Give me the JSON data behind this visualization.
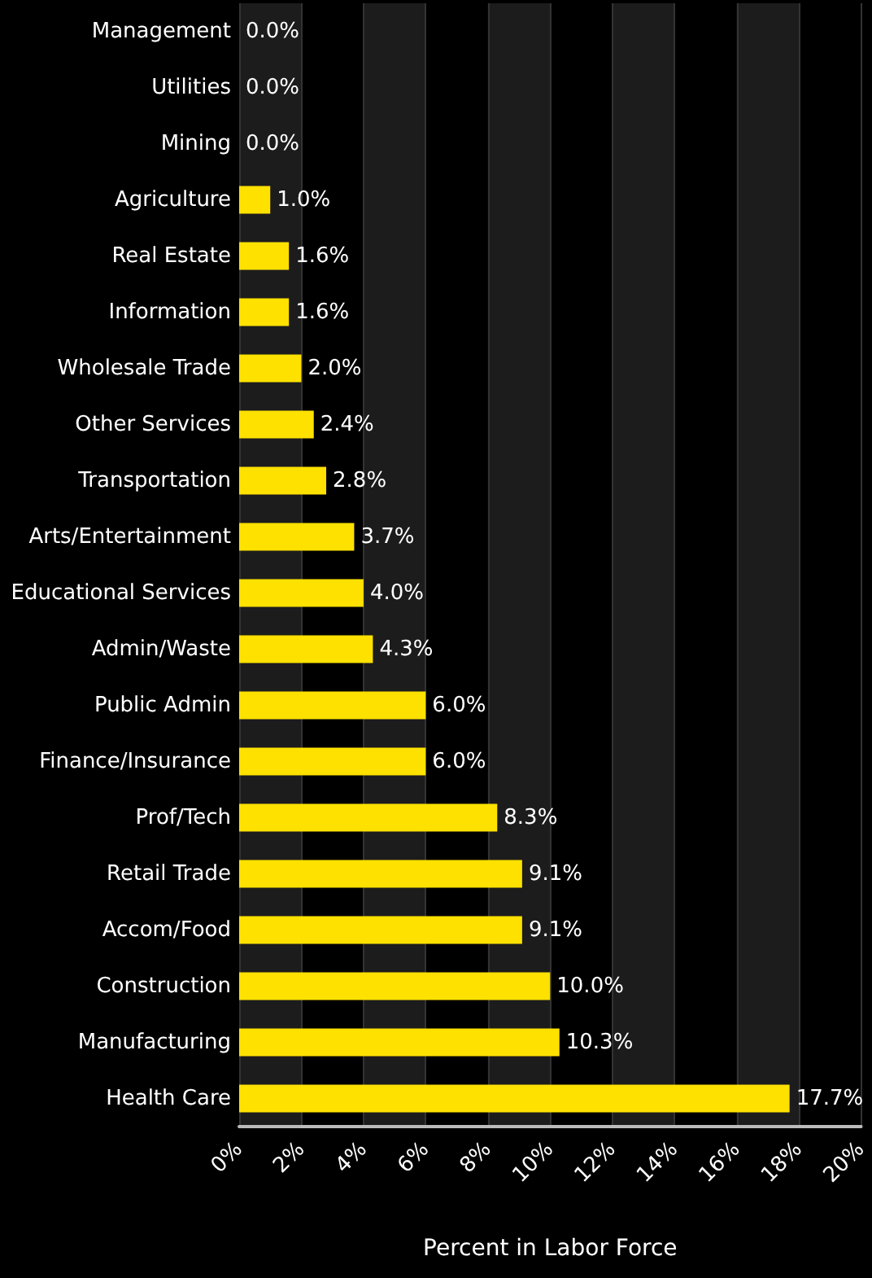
{
  "chart_data": {
    "type": "bar",
    "orientation": "horizontal",
    "xlabel": "Percent in Labor Force",
    "categories": [
      "Management",
      "Utilities",
      "Mining",
      "Agriculture",
      "Real Estate",
      "Information",
      "Wholesale Trade",
      "Other Services",
      "Transportation",
      "Arts/Entertainment",
      "Educational Services",
      "Admin/Waste",
      "Public Admin",
      "Finance/Insurance",
      "Prof/Tech",
      "Retail Trade",
      "Accom/Food",
      "Construction",
      "Manufacturing",
      "Health Care"
    ],
    "values": [
      0.0,
      0.0,
      0.0,
      1.0,
      1.6,
      1.6,
      2.0,
      2.4,
      2.8,
      3.7,
      4.0,
      4.3,
      6.0,
      6.0,
      8.3,
      9.1,
      9.1,
      10.0,
      10.3,
      17.7
    ],
    "value_labels": [
      "0.0%",
      "0.0%",
      "0.0%",
      "1.0%",
      "1.6%",
      "1.6%",
      "2.0%",
      "2.4%",
      "2.8%",
      "3.7%",
      "4.0%",
      "4.3%",
      "6.0%",
      "6.0%",
      "8.3%",
      "9.1%",
      "9.1%",
      "10.0%",
      "10.3%",
      "17.7%"
    ],
    "color": "#ffe100",
    "xlim": [
      0,
      20
    ],
    "xticks": [
      {
        "value": 0,
        "label": "0%"
      },
      {
        "value": 2,
        "label": "2%"
      },
      {
        "value": 4,
        "label": "4%"
      },
      {
        "value": 6,
        "label": "6%"
      },
      {
        "value": 8,
        "label": "8%"
      },
      {
        "value": 10,
        "label": "10%"
      },
      {
        "value": 12,
        "label": "12%"
      },
      {
        "value": 14,
        "label": "14%"
      },
      {
        "value": 16,
        "label": "16%"
      },
      {
        "value": 18,
        "label": "18%"
      },
      {
        "value": 20,
        "label": "20%"
      }
    ],
    "grid": "x"
  }
}
